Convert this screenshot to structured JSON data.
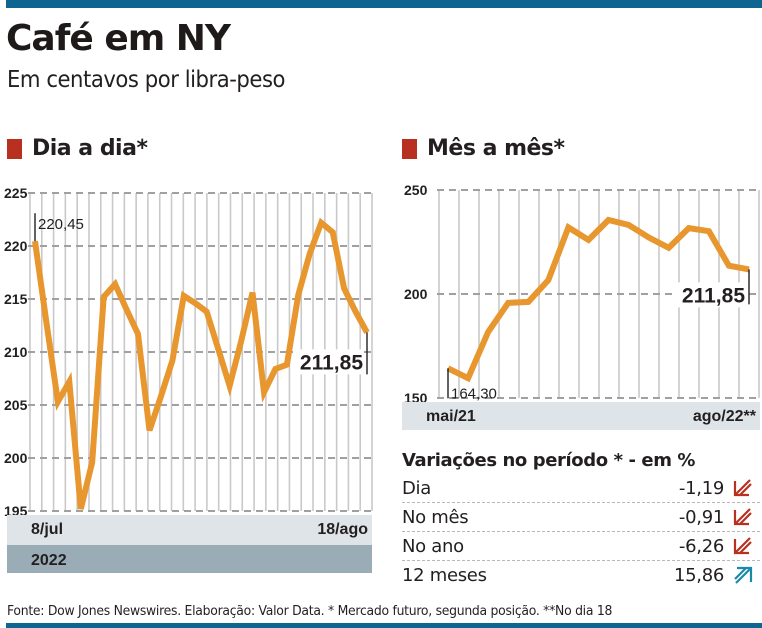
{
  "header": {
    "title": "Café em NY",
    "subtitle": "Em centavos por libra-peso"
  },
  "colors": {
    "brand_bar": "#0e6590",
    "section_marker": "#b83020",
    "line": "#e8962e",
    "axis_band_light": "#dfe4e8",
    "axis_band_dark": "#9aadb6",
    "down_arrow": "#b83020",
    "up_arrow": "#1a8aa8"
  },
  "chart_data": [
    {
      "id": "dia-a-dia",
      "type": "line",
      "title": "Dia a dia*",
      "xlabel": "",
      "ylabel": "",
      "ylim": [
        195,
        225
      ],
      "yticks": [
        "225",
        "220",
        "215",
        "210",
        "205",
        "200",
        "195"
      ],
      "ytick_values": [
        225,
        220,
        215,
        210,
        205,
        200,
        195
      ],
      "x_start_label": "8/jul",
      "x_end_label": "18/ago",
      "year_label": "2022",
      "grid": true,
      "annotations": [
        {
          "index": 0,
          "text": "220,45"
        },
        {
          "index": 29,
          "text": "211,85"
        }
      ],
      "values": [
        220.45,
        212.8,
        205.3,
        207.2,
        195.2,
        199.6,
        215.2,
        216.4,
        214.0,
        211.7,
        202.6,
        205.8,
        209.2,
        215.3,
        214.6,
        213.8,
        210.3,
        206.8,
        211.0,
        215.6,
        206.2,
        208.4,
        208.8,
        215.4,
        219.3,
        222.2,
        221.3,
        216.0,
        213.8,
        211.85
      ]
    },
    {
      "id": "mes-a-mes",
      "type": "line",
      "title": "Mês a mês*",
      "xlabel": "",
      "ylabel": "",
      "ylim": [
        150,
        250
      ],
      "yticks": [
        "250",
        "200",
        "150"
      ],
      "ytick_values": [
        250,
        200,
        150
      ],
      "x_start_label": "mai/21",
      "x_end_label": "ago/22**",
      "grid": true,
      "annotations": [
        {
          "index": 0,
          "text": "164,30"
        },
        {
          "index": 15,
          "text": "211,85"
        }
      ],
      "values": [
        164.3,
        159.5,
        181.7,
        195.7,
        196.2,
        206.7,
        232.0,
        226.0,
        235.6,
        233.2,
        227.2,
        222.2,
        231.7,
        230.2,
        213.6,
        211.85
      ]
    }
  ],
  "variations": {
    "title": "Variações no período * - em %",
    "rows": [
      {
        "label": "Dia",
        "value": "-1,19",
        "trend": "down",
        "icon": "arrow-down-left-icon"
      },
      {
        "label": "No mês",
        "value": "-0,91",
        "trend": "down",
        "icon": "arrow-down-left-icon"
      },
      {
        "label": "No ano",
        "value": "-6,26",
        "trend": "down",
        "icon": "arrow-down-left-icon"
      },
      {
        "label": "12 meses",
        "value": "15,86",
        "trend": "up",
        "icon": "arrow-up-right-icon"
      }
    ]
  },
  "footer": {
    "source": "Fonte: Dow Jones Newswires. Elaboração: Valor Data. * Mercado futuro, segunda posição. **No dia 18"
  }
}
